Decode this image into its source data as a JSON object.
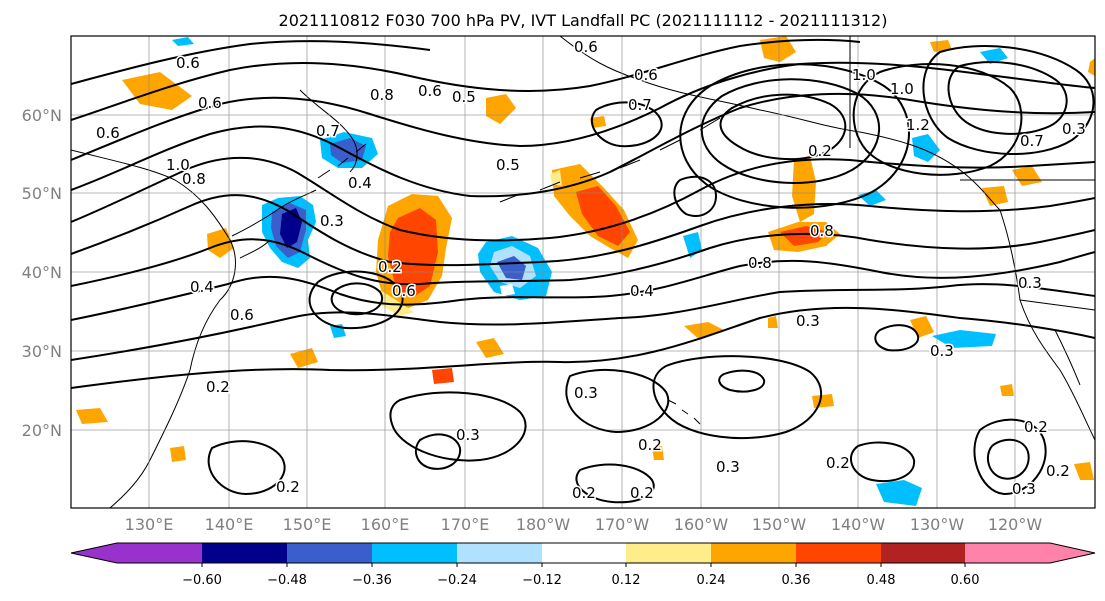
{
  "title": "2021110812 F030 700 hPa PV, IVT Landfall PC (2021111112 - 2021111312)",
  "map": {
    "lat_ticks": [
      "60°N",
      "50°N",
      "40°N",
      "30°N",
      "20°N"
    ],
    "lon_ticks": [
      "130°E",
      "140°E",
      "150°E",
      "160°E",
      "170°E",
      "180°W",
      "170°W",
      "160°W",
      "150°W",
      "140°W",
      "130°W",
      "120°W"
    ],
    "contour_labels": [
      "0.6",
      "0.6",
      "0.6",
      "0.6",
      "0.6",
      "0.6",
      "0.7",
      "0.8",
      "0.5",
      "0.5",
      "1.0",
      "1.0",
      "1.0",
      "0.8",
      "0.8",
      "0.8",
      "0.7",
      "0.4",
      "0.3",
      "0.2",
      "0.6",
      "0.4",
      "0.6",
      "0.3",
      "0.4",
      "0.3",
      "0.2",
      "0.3",
      "0.3",
      "0.2",
      "0.2",
      "0.3",
      "0.2",
      "0.2",
      "0.2",
      "0.3",
      "0.2",
      "0.3",
      "0.2",
      "1.2",
      "0.2",
      "0.7",
      "0.3"
    ]
  },
  "colorbar": {
    "tick_labels": [
      "−0.60",
      "−0.48",
      "−0.36",
      "−0.24",
      "−0.12",
      "0.12",
      "0.24",
      "0.36",
      "0.48",
      "0.60"
    ],
    "colors": [
      "#9932cc",
      "#00008b",
      "#3a5fcd",
      "#00bfff",
      "#b0e2ff",
      "#ffffff",
      "#ffec8b",
      "#ffa500",
      "#ff4500",
      "#b22222",
      "#ff82ab"
    ]
  }
}
